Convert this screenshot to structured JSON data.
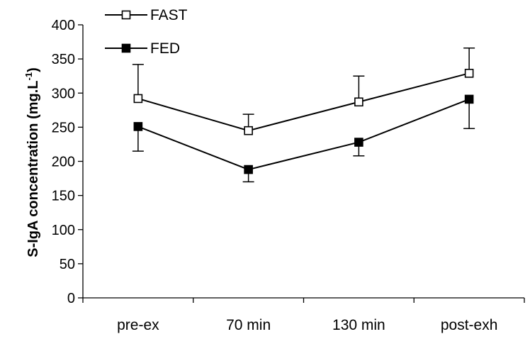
{
  "chart_data": {
    "type": "line",
    "ylabel_main": "S-IgA concentration (mg.L",
    "ylabel_sup": "-1",
    "ylabel_close": ")",
    "categories": [
      "pre-ex",
      "70 min",
      "130 min",
      "post-exh"
    ],
    "ylim": [
      0,
      400
    ],
    "yticks": [
      "0",
      "50",
      "100",
      "150",
      "200",
      "250",
      "300",
      "350",
      "400"
    ],
    "grid": false,
    "legend_position": "top-left",
    "series": [
      {
        "name": "FAST",
        "marker": "open-square",
        "values": [
          292,
          245,
          287,
          329
        ],
        "error_upper": [
          342,
          269,
          325,
          366
        ],
        "error_lower": null
      },
      {
        "name": "FED",
        "marker": "filled-square",
        "values": [
          251,
          188,
          228,
          291
        ],
        "error_upper": null,
        "error_lower": [
          215,
          170,
          208,
          248
        ]
      }
    ]
  }
}
